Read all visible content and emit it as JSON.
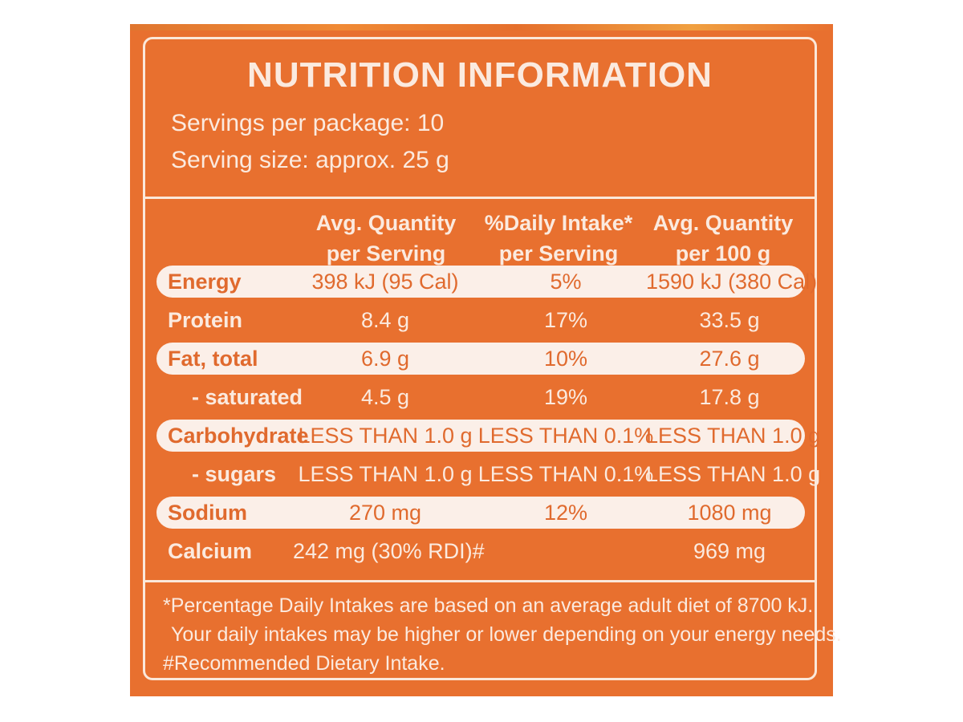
{
  "title": "NUTRITION INFORMATION",
  "servings_per_package": "Servings per package: 10",
  "serving_size": "Serving size: approx. 25 g",
  "columns": [
    {
      "line1": "Avg. Quantity",
      "line2": "per Serving"
    },
    {
      "line1": "%Daily Intake*",
      "line2": "per Serving"
    },
    {
      "line1": "Avg. Quantity",
      "line2": "per 100 g"
    }
  ],
  "rows": [
    {
      "name": "Energy",
      "per_serving": "398 kJ (95 Cal)",
      "daily_intake": "5%",
      "per_100g": "1590 kJ (380 Cal)"
    },
    {
      "name": "Protein",
      "per_serving": "8.4 g",
      "daily_intake": "17%",
      "per_100g": "33.5 g"
    },
    {
      "name": "Fat, total",
      "per_serving": "6.9 g",
      "daily_intake": "10%",
      "per_100g": "27.6 g"
    },
    {
      "name": "- saturated",
      "per_serving": "4.5 g",
      "daily_intake": "19%",
      "per_100g": "17.8 g"
    },
    {
      "name": "Carbohydrate",
      "per_serving": "LESS THAN 1.0 g",
      "daily_intake": "LESS THAN 0.1%",
      "per_100g": "LESS THAN 1.0 g"
    },
    {
      "name": "- sugars",
      "per_serving": "LESS THAN 1.0 g",
      "daily_intake": "LESS THAN 0.1%",
      "per_100g": "LESS THAN 1.0 g"
    },
    {
      "name": "Sodium",
      "per_serving": "270 mg",
      "daily_intake": "12%",
      "per_100g": "1080 mg"
    },
    {
      "name": "Calcium",
      "per_serving": "242 mg (30% RDI)#",
      "daily_intake": "",
      "per_100g": "969 mg"
    }
  ],
  "footnotes": [
    "*Percentage Daily Intakes are based on an average adult diet of 8700 kJ.",
    "Your daily intakes may be higher or lower depending on your energy needs.",
    "#Recommended Dietary Intake."
  ],
  "colors": {
    "background": "#e8702f",
    "text": "#fbeadf",
    "pill": "#fbefe8"
  }
}
